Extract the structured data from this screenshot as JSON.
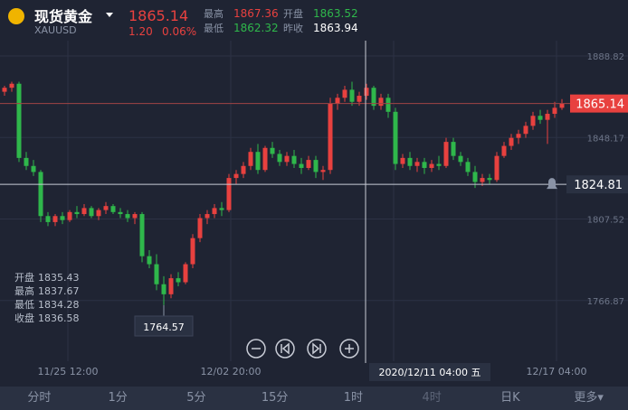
{
  "header": {
    "name": "现货黄金",
    "symbol": "XAUUSD",
    "price": 1865.14,
    "change": "1.20",
    "change_pct": "0.06%",
    "stats": [
      {
        "label": "最高",
        "value": 1867.36
      },
      {
        "label": "开盘",
        "value": 1863.52
      },
      {
        "label": "最低",
        "value": 1862.32
      },
      {
        "label": "昨收",
        "value": 1863.94
      }
    ]
  },
  "chart": {
    "type": "candlestick",
    "ylim": [
      1736.6,
      1896.5
    ],
    "yticks": [
      1888.82,
      1848.17,
      1807.52,
      1766.87
    ],
    "xlabels": [
      "11/25 12:00",
      "12/02 20:00",
      "12/17 04:00"
    ],
    "crosshair": {
      "price": 1824.81,
      "time": "2020/12/11 04:00 五"
    },
    "info": [
      {
        "label": "开盘",
        "value": 1835.43
      },
      {
        "label": "最高",
        "value": 1837.67
      },
      {
        "label": "最低",
        "value": 1834.28
      },
      {
        "label": "收盘",
        "value": 1836.58
      }
    ],
    "up_color": "#e8413f",
    "down_color": "#2fb74b",
    "candles": [
      [
        1871,
        1874,
        1869,
        1873
      ],
      [
        1873,
        1876,
        1871,
        1875
      ],
      [
        1875,
        1876,
        1836,
        1838
      ],
      [
        1838,
        1841,
        1832,
        1834
      ],
      [
        1834,
        1837,
        1829,
        1831
      ],
      [
        1831,
        1832,
        1806,
        1809
      ],
      [
        1809,
        1811,
        1804,
        1806
      ],
      [
        1806,
        1810,
        1804,
        1809
      ],
      [
        1809,
        1811,
        1805,
        1807
      ],
      [
        1807,
        1812,
        1806,
        1811
      ],
      [
        1811,
        1814,
        1808,
        1810
      ],
      [
        1810,
        1815,
        1809,
        1813
      ],
      [
        1813,
        1814,
        1808,
        1809
      ],
      [
        1809,
        1813,
        1807,
        1812
      ],
      [
        1812,
        1816,
        1810,
        1814
      ],
      [
        1814,
        1815,
        1810,
        1811
      ],
      [
        1811,
        1813,
        1808,
        1810
      ],
      [
        1810,
        1812,
        1806,
        1808
      ],
      [
        1808,
        1811,
        1805,
        1810
      ],
      [
        1810,
        1811,
        1786,
        1789
      ],
      [
        1789,
        1792,
        1783,
        1785
      ],
      [
        1785,
        1790,
        1772,
        1775
      ],
      [
        1775,
        1779,
        1764.57,
        1770
      ],
      [
        1770,
        1780,
        1768,
        1778
      ],
      [
        1778,
        1781,
        1774,
        1776
      ],
      [
        1776,
        1786,
        1775,
        1785
      ],
      [
        1785,
        1800,
        1783,
        1798
      ],
      [
        1798,
        1810,
        1796,
        1808
      ],
      [
        1808,
        1812,
        1805,
        1810
      ],
      [
        1810,
        1815,
        1808,
        1813
      ],
      [
        1813,
        1816,
        1809,
        1812
      ],
      [
        1812,
        1830,
        1811,
        1828
      ],
      [
        1828,
        1832,
        1825,
        1830
      ],
      [
        1830,
        1836,
        1828,
        1834
      ],
      [
        1834,
        1843,
        1832,
        1841
      ],
      [
        1841,
        1845,
        1830,
        1832
      ],
      [
        1832,
        1844,
        1831,
        1843
      ],
      [
        1843,
        1846,
        1838,
        1840
      ],
      [
        1840,
        1842,
        1834,
        1836
      ],
      [
        1836,
        1841,
        1834,
        1839
      ],
      [
        1839,
        1842,
        1833,
        1835
      ],
      [
        1835,
        1838,
        1830,
        1833
      ],
      [
        1833,
        1839,
        1832,
        1837
      ],
      [
        1837,
        1839,
        1828,
        1831
      ],
      [
        1831,
        1834,
        1827,
        1832
      ],
      [
        1832,
        1868,
        1830,
        1865
      ],
      [
        1865,
        1870,
        1862,
        1868
      ],
      [
        1868,
        1874,
        1866,
        1872
      ],
      [
        1872,
        1876,
        1864,
        1866
      ],
      [
        1866,
        1871,
        1864,
        1869
      ],
      [
        1869,
        1875,
        1867,
        1873
      ],
      [
        1873,
        1874,
        1862,
        1864
      ],
      [
        1864,
        1870,
        1862,
        1868
      ],
      [
        1868,
        1870,
        1858,
        1861
      ],
      [
        1861,
        1863,
        1832,
        1835
      ],
      [
        1835,
        1840,
        1833,
        1838
      ],
      [
        1838,
        1841,
        1832,
        1834
      ],
      [
        1834,
        1838,
        1831,
        1836
      ],
      [
        1836,
        1838,
        1830,
        1833
      ],
      [
        1833,
        1837,
        1831,
        1835
      ],
      [
        1835,
        1839,
        1832,
        1834
      ],
      [
        1834,
        1848,
        1833,
        1846
      ],
      [
        1846,
        1848,
        1837,
        1839
      ],
      [
        1839,
        1841,
        1834,
        1836
      ],
      [
        1836,
        1838,
        1829,
        1831
      ],
      [
        1831,
        1834,
        1823,
        1826
      ],
      [
        1826,
        1830,
        1824,
        1828
      ],
      [
        1828,
        1830,
        1825,
        1827
      ],
      [
        1827,
        1841,
        1826,
        1839
      ],
      [
        1839,
        1846,
        1838,
        1844
      ],
      [
        1844,
        1850,
        1842,
        1848
      ],
      [
        1848,
        1852,
        1845,
        1850
      ],
      [
        1850,
        1856,
        1848,
        1854
      ],
      [
        1854,
        1861,
        1852,
        1859
      ],
      [
        1859,
        1862,
        1855,
        1857
      ],
      [
        1857,
        1862,
        1845,
        1860
      ],
      [
        1860,
        1866,
        1858,
        1863
      ],
      [
        1863,
        1867.36,
        1862,
        1865.14
      ]
    ]
  },
  "tabs": [
    "分时",
    "1分",
    "5分",
    "15分",
    "1时",
    "4时",
    "日K",
    "更多▾"
  ]
}
